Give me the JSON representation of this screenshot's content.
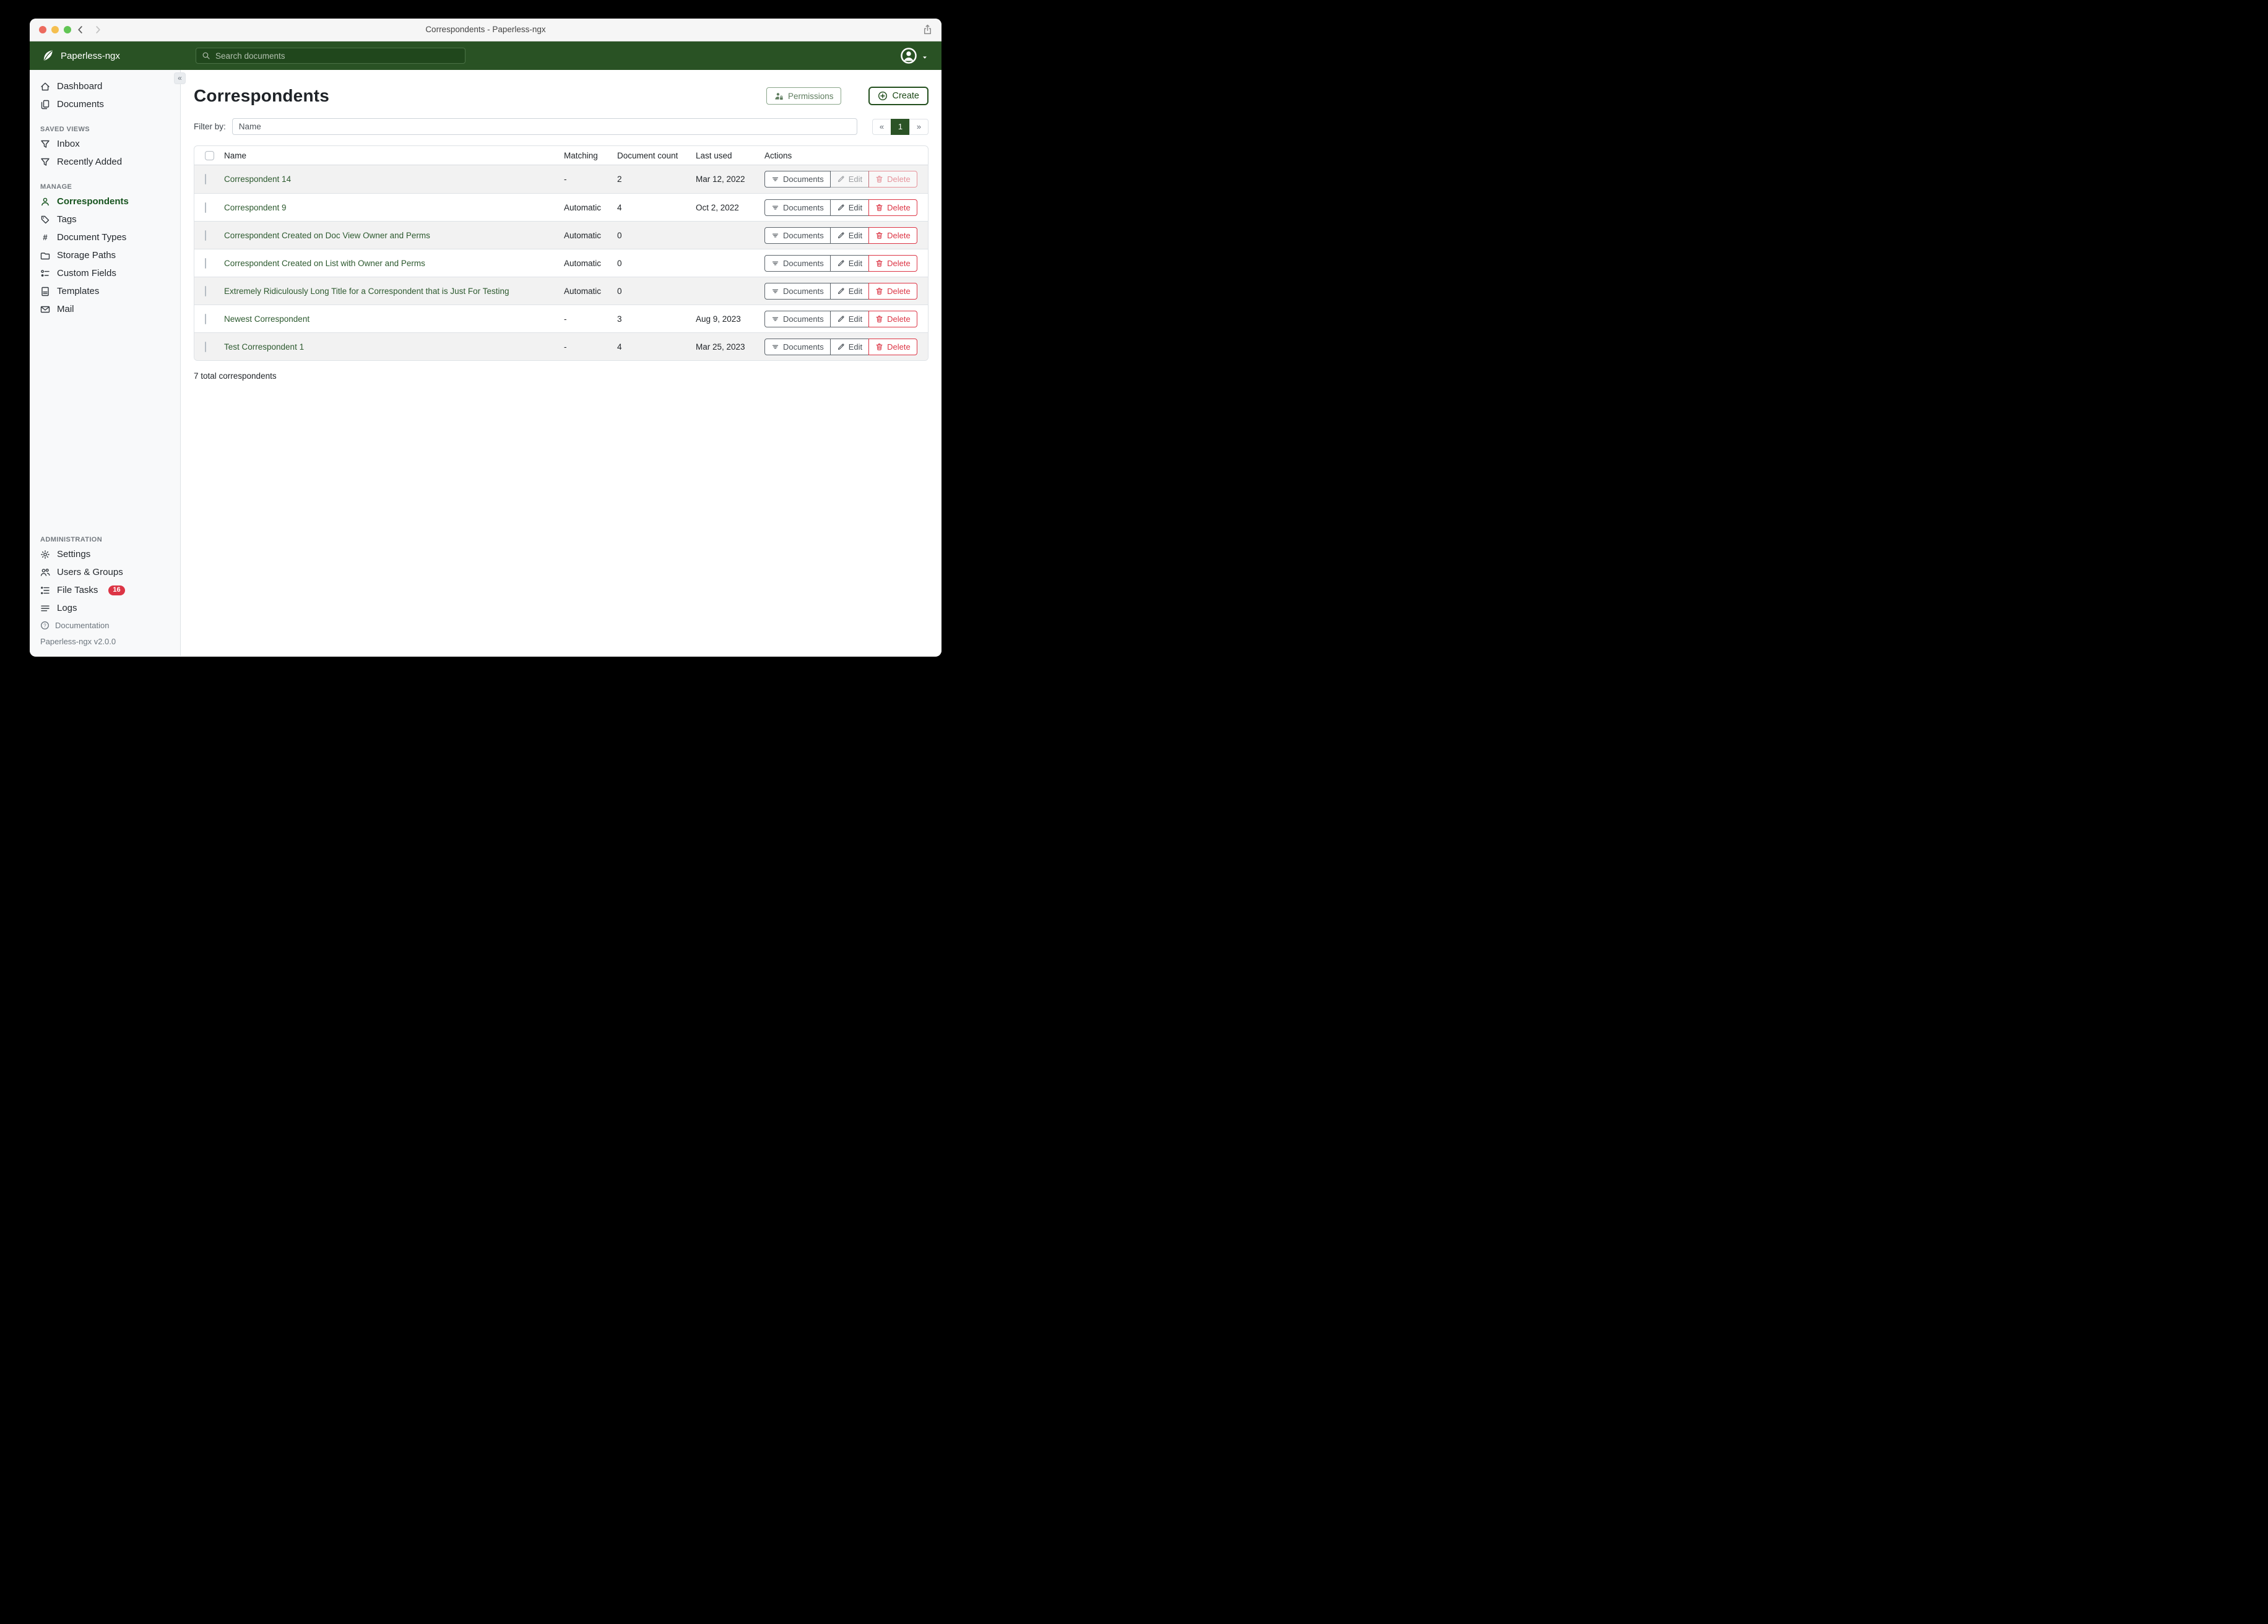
{
  "window": {
    "title": "Correspondents - Paperless-ngx"
  },
  "navbar": {
    "brand": "Paperless-ngx",
    "search_placeholder": "Search documents"
  },
  "sidebar": {
    "groups": [
      {
        "heading": "",
        "items": [
          {
            "label": "Dashboard",
            "icon": "home"
          },
          {
            "label": "Documents",
            "icon": "files"
          }
        ]
      },
      {
        "heading": "SAVED VIEWS",
        "items": [
          {
            "label": "Inbox",
            "icon": "funnel"
          },
          {
            "label": "Recently Added",
            "icon": "funnel"
          }
        ]
      },
      {
        "heading": "MANAGE",
        "items": [
          {
            "label": "Correspondents",
            "icon": "person",
            "active": true
          },
          {
            "label": "Tags",
            "icon": "tag"
          },
          {
            "label": "Document Types",
            "icon": "hash"
          },
          {
            "label": "Storage Paths",
            "icon": "folder"
          },
          {
            "label": "Custom Fields",
            "icon": "custom-fields"
          },
          {
            "label": "Templates",
            "icon": "file-text"
          },
          {
            "label": "Mail",
            "icon": "envelope"
          }
        ]
      },
      {
        "heading": "ADMINISTRATION",
        "items": [
          {
            "label": "Settings",
            "icon": "gear"
          },
          {
            "label": "Users & Groups",
            "icon": "people"
          },
          {
            "label": "File Tasks",
            "icon": "list-task",
            "badge": "16"
          },
          {
            "label": "Logs",
            "icon": "text-lines"
          }
        ]
      }
    ],
    "footer": {
      "documentation": "Documentation",
      "version": "Paperless-ngx v2.0.0"
    }
  },
  "page": {
    "title": "Correspondents",
    "permissions_label": "Permissions",
    "create_label": "Create",
    "filter_label": "Filter by:",
    "filter_placeholder": "Name",
    "pagination": {
      "prev": "«",
      "page": "1",
      "next": "»"
    },
    "total": "7 total correspondents"
  },
  "table": {
    "headers": {
      "name": "Name",
      "matching": "Matching",
      "count": "Document count",
      "last_used": "Last used",
      "actions": "Actions"
    },
    "action_labels": {
      "documents": "Documents",
      "edit": "Edit",
      "delete": "Delete"
    },
    "rows": [
      {
        "name": "Correspondent 14",
        "matching": "-",
        "count": "2",
        "last_used": "Mar 12, 2022",
        "edit_disabled": true,
        "delete_disabled": true
      },
      {
        "name": "Correspondent 9",
        "matching": "Automatic",
        "count": "4",
        "last_used": "Oct 2, 2022"
      },
      {
        "name": "Correspondent Created on Doc View Owner and Perms",
        "matching": "Automatic",
        "count": "0",
        "last_used": ""
      },
      {
        "name": "Correspondent Created on List with Owner and Perms",
        "matching": "Automatic",
        "count": "0",
        "last_used": ""
      },
      {
        "name": "Extremely Ridiculously Long Title for a Correspondent that is Just For Testing",
        "matching": "Automatic",
        "count": "0",
        "last_used": ""
      },
      {
        "name": "Newest Correspondent",
        "matching": "-",
        "count": "3",
        "last_used": "Aug 9, 2023"
      },
      {
        "name": "Test Correspondent 1",
        "matching": "-",
        "count": "4",
        "last_used": "Mar 25, 2023"
      }
    ]
  },
  "colors": {
    "navbar_green": "#295224",
    "accent_green": "#2b5326",
    "link_green": "#2d5a2f",
    "danger_red": "#dc3545"
  }
}
